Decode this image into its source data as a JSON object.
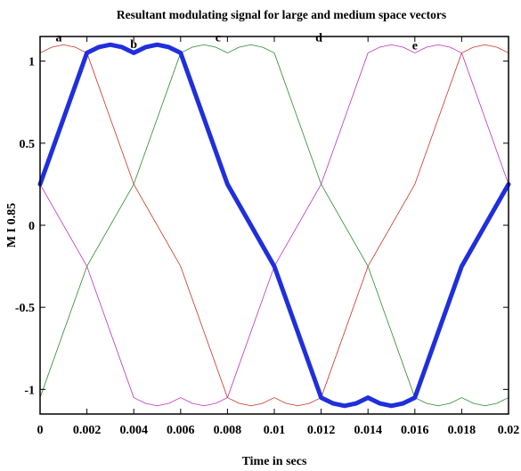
{
  "chart_data": {
    "type": "line",
    "title": "Resultant modulating signal for large and medium space vectors",
    "xlabel": "Time in secs",
    "ylabel": "M I 0.85",
    "xlim": [
      0,
      0.02
    ],
    "ylim": [
      -1.15,
      1.15
    ],
    "xticks": [
      0,
      0.002,
      0.004,
      0.006,
      0.008,
      0.01,
      0.012,
      0.014,
      0.016,
      0.018,
      0.02
    ],
    "xtick_labels": [
      "0",
      "0.002",
      "0.004",
      "0.006",
      "0.008",
      "0.01",
      "0.012",
      "0.014",
      "0.016",
      "0.018",
      "0.02"
    ],
    "yticks": [
      1,
      0.5,
      0,
      -0.5,
      -1
    ],
    "ytick_labels": [
      "1",
      "0.5",
      "0",
      "-0.5",
      "-1"
    ],
    "grid": false,
    "annotations": [
      {
        "text": "a",
        "x": 0.0008,
        "y": 1.12
      },
      {
        "text": "b",
        "x": 0.004,
        "y": 1.08
      },
      {
        "text": "c",
        "x": 0.0076,
        "y": 1.12
      },
      {
        "text": "d",
        "x": 0.0119,
        "y": 1.12
      },
      {
        "text": "e",
        "x": 0.016,
        "y": 1.07
      }
    ],
    "series": [
      {
        "color": "#cc3322",
        "lineWidth": 0.8,
        "x": [
          0,
          0.0005,
          0.001,
          0.0015,
          0.002,
          0.004,
          0.006,
          0.008,
          0.0085,
          0.009,
          0.0095,
          0.01,
          0.0105,
          0.011,
          0.0115,
          0.012,
          0.014,
          0.016,
          0.018,
          0.0185,
          0.019,
          0.0195,
          0.02
        ],
        "y": [
          1.05,
          1.085,
          1.1,
          1.085,
          1.05,
          0.25,
          -0.25,
          -1.05,
          -1.085,
          -1.1,
          -1.085,
          -1.05,
          -1.085,
          -1.1,
          -1.085,
          -1.05,
          -0.25,
          0.25,
          1.05,
          1.085,
          1.1,
          1.085,
          1.05
        ]
      },
      {
        "color": "#2a8a2a",
        "lineWidth": 0.8,
        "x": [
          0,
          0.002,
          0.004,
          0.006,
          0.0065,
          0.007,
          0.0075,
          0.008,
          0.0085,
          0.009,
          0.0095,
          0.01,
          0.012,
          0.014,
          0.016,
          0.0165,
          0.017,
          0.0175,
          0.018,
          0.0185,
          0.019,
          0.0195,
          0.02
        ],
        "y": [
          -1.05,
          -0.25,
          0.25,
          1.05,
          1.085,
          1.1,
          1.085,
          1.05,
          1.085,
          1.1,
          1.085,
          1.05,
          0.25,
          -0.25,
          -1.05,
          -1.085,
          -1.1,
          -1.085,
          -1.05,
          -1.085,
          -1.1,
          -1.085,
          -1.05
        ]
      },
      {
        "color": "#bb33bb",
        "lineWidth": 0.8,
        "x": [
          0,
          0.002,
          0.004,
          0.0045,
          0.005,
          0.0055,
          0.006,
          0.0065,
          0.007,
          0.0075,
          0.008,
          0.01,
          0.012,
          0.014,
          0.0145,
          0.015,
          0.0155,
          0.016,
          0.0165,
          0.017,
          0.0175,
          0.018,
          0.02
        ],
        "y": [
          0.25,
          -0.25,
          -1.05,
          -1.085,
          -1.1,
          -1.085,
          -1.05,
          -1.085,
          -1.1,
          -1.085,
          -1.05,
          -0.25,
          0.25,
          1.05,
          1.085,
          1.1,
          1.085,
          1.05,
          1.085,
          1.1,
          1.085,
          1.05,
          0.25
        ]
      },
      {
        "color": "#1f2fdd",
        "lineWidth": 5,
        "x": [
          0,
          0.002,
          0.0025,
          0.003,
          0.0035,
          0.004,
          0.0045,
          0.005,
          0.0055,
          0.006,
          0.008,
          0.01,
          0.012,
          0.0125,
          0.013,
          0.0135,
          0.014,
          0.0145,
          0.015,
          0.0155,
          0.016,
          0.018,
          0.02
        ],
        "y": [
          0.25,
          1.05,
          1.085,
          1.1,
          1.085,
          1.05,
          1.085,
          1.1,
          1.085,
          1.05,
          0.25,
          -0.25,
          -1.05,
          -1.085,
          -1.1,
          -1.085,
          -1.05,
          -1.085,
          -1.1,
          -1.085,
          -1.05,
          -0.25,
          0.25
        ]
      }
    ]
  }
}
